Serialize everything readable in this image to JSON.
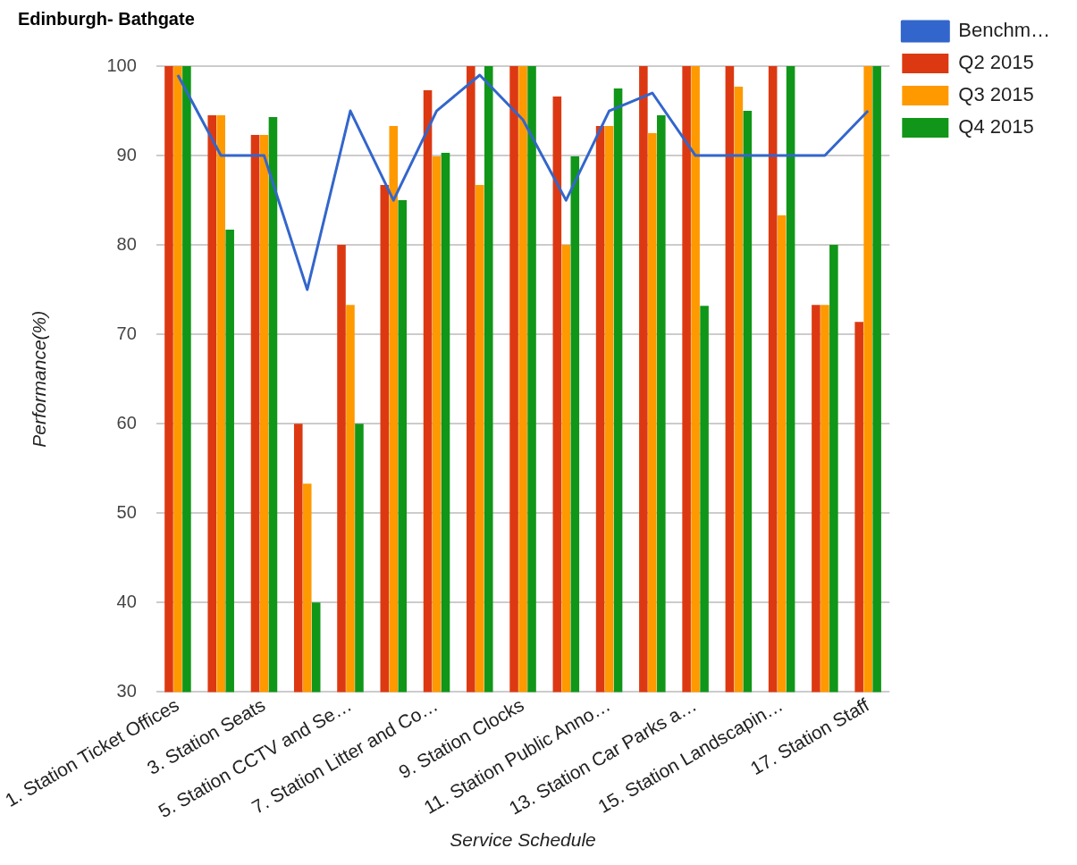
{
  "chart_data": {
    "type": "bar",
    "title": "Edinburgh- Bathgate",
    "xlabel": "Service Schedule",
    "ylabel": "Performance(%)",
    "categories": [
      "1. Station Ticket Offices",
      null,
      "3. Station Seats",
      null,
      "5. Station CCTV and Se…",
      null,
      "7. Station Litter and Co…",
      null,
      "9. Station Clocks",
      null,
      "11. Station Public Anno…",
      null,
      "13. Station Car Parks a…",
      null,
      "15. Station Landscapin…",
      null,
      "17. Station Staff"
    ],
    "series": [
      {
        "name": "Benchm…",
        "type": "line",
        "color": "#3366cc",
        "values": [
          99,
          90,
          90,
          75,
          95,
          85,
          95,
          99,
          94,
          85,
          95,
          97,
          90,
          90,
          90,
          90,
          95
        ]
      },
      {
        "name": "Q2 2015",
        "color": "#dc3912",
        "values": [
          100,
          94.5,
          92.3,
          60,
          80,
          86.7,
          97.3,
          100,
          100,
          96.6,
          93.3,
          100,
          100,
          100,
          100,
          73.3,
          71.4
        ]
      },
      {
        "name": "Q3 2015",
        "color": "#ff9900",
        "values": [
          100,
          94.5,
          92.3,
          53.3,
          73.3,
          93.3,
          89.9,
          86.7,
          100,
          80,
          93.3,
          92.5,
          100,
          97.7,
          83.3,
          73.3,
          100
        ]
      },
      {
        "name": "Q4 2015",
        "color": "#109618",
        "values": [
          100,
          81.7,
          94.3,
          40,
          60,
          85,
          90.3,
          100,
          100,
          89.9,
          97.5,
          94.5,
          73.2,
          95,
          100,
          80,
          100
        ]
      }
    ],
    "ylim": [
      30,
      100
    ],
    "yticks": [
      30,
      40,
      50,
      60,
      70,
      80,
      90,
      100
    ],
    "grid": "y",
    "legend": "top right",
    "marker": "none"
  }
}
